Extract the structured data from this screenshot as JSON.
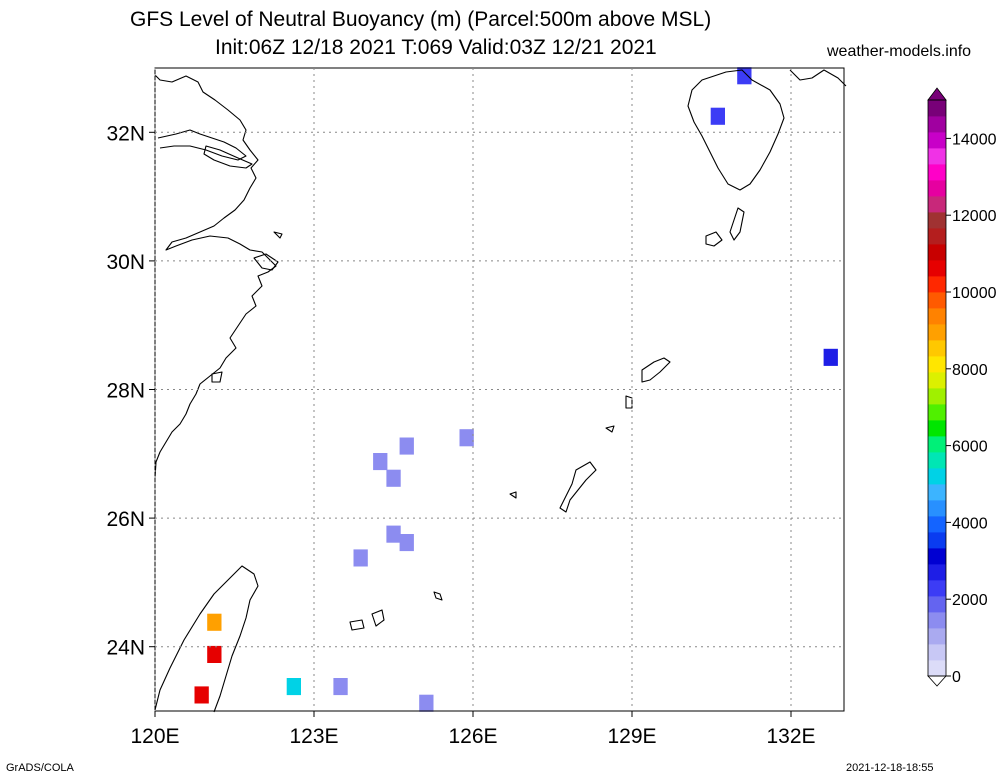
{
  "title": {
    "line1": "GFS Level of Neutral Buoyancy (m) (Parcel:500m above MSL)",
    "line2": "Init:06Z 12/18 2021 T:069 Valid:03Z 12/21 2021",
    "site": "weather-models.info"
  },
  "footer": {
    "left": "GrADS/COLA",
    "right": "2021-12-18-18:55"
  },
  "map": {
    "lon_range": [
      120,
      133
    ],
    "lat_range": [
      23,
      33
    ],
    "x_ticks": [
      {
        "lon": 120,
        "label": "120E"
      },
      {
        "lon": 123,
        "label": "123E"
      },
      {
        "lon": 126,
        "label": "126E"
      },
      {
        "lon": 129,
        "label": "129E"
      },
      {
        "lon": 132,
        "label": "132E"
      }
    ],
    "y_ticks": [
      {
        "lat": 24,
        "label": "24N"
      },
      {
        "lat": 26,
        "label": "26N"
      },
      {
        "lat": 28,
        "label": "28N"
      },
      {
        "lat": 30,
        "label": "30N"
      },
      {
        "lat": 32,
        "label": "32N"
      }
    ],
    "grid": true
  },
  "colorbar": {
    "labels": [
      "0",
      "2000",
      "4000",
      "6000",
      "8000",
      "10000",
      "12000",
      "14000"
    ],
    "colors": [
      "#dcdcf8",
      "#c8c8f5",
      "#aaaaf0",
      "#8c8cf0",
      "#6464f0",
      "#3c3cf5",
      "#1e1ee6",
      "#0000d2",
      "#0a3cf0",
      "#1464ff",
      "#2890ff",
      "#3cb4ff",
      "#00d2e6",
      "#00e6b4",
      "#00f078",
      "#00e600",
      "#50f000",
      "#a0f000",
      "#dcf000",
      "#ffe600",
      "#ffc800",
      "#ffa000",
      "#ff8200",
      "#ff5a00",
      "#ff2800",
      "#e60000",
      "#c80000",
      "#b41e1e",
      "#a03232",
      "#c8287a",
      "#e600a0",
      "#ff00c8",
      "#f032e6",
      "#c800c8",
      "#a000a0",
      "#780078"
    ]
  },
  "chart_data": {
    "type": "heatmap",
    "title": "GFS Level of Neutral Buoyancy (m) (Parcel:500m above MSL)",
    "units": "m",
    "cells": [
      {
        "lon": 124.25,
        "lat": 26.88,
        "value": 1500
      },
      {
        "lon": 124.5,
        "lat": 26.62,
        "value": 1500
      },
      {
        "lon": 124.75,
        "lat": 27.12,
        "value": 1500
      },
      {
        "lon": 125.88,
        "lat": 27.25,
        "value": 1500
      },
      {
        "lon": 124.5,
        "lat": 25.75,
        "value": 1500
      },
      {
        "lon": 124.75,
        "lat": 25.62,
        "value": 1500
      },
      {
        "lon": 123.88,
        "lat": 25.38,
        "value": 1500
      },
      {
        "lon": 123.5,
        "lat": 23.38,
        "value": 1500
      },
      {
        "lon": 125.12,
        "lat": 23.12,
        "value": 1500
      },
      {
        "lon": 131.12,
        "lat": 32.88,
        "value": 2200
      },
      {
        "lon": 130.62,
        "lat": 32.25,
        "value": 2200
      },
      {
        "lon": 132.75,
        "lat": 28.5,
        "value": 2500
      },
      {
        "lon": 122.62,
        "lat": 23.38,
        "value": 5000
      },
      {
        "lon": 121.12,
        "lat": 24.38,
        "value": 9000
      },
      {
        "lon": 121.12,
        "lat": 23.88,
        "value": 10500
      },
      {
        "lon": 120.88,
        "lat": 23.25,
        "value": 10500
      }
    ]
  }
}
